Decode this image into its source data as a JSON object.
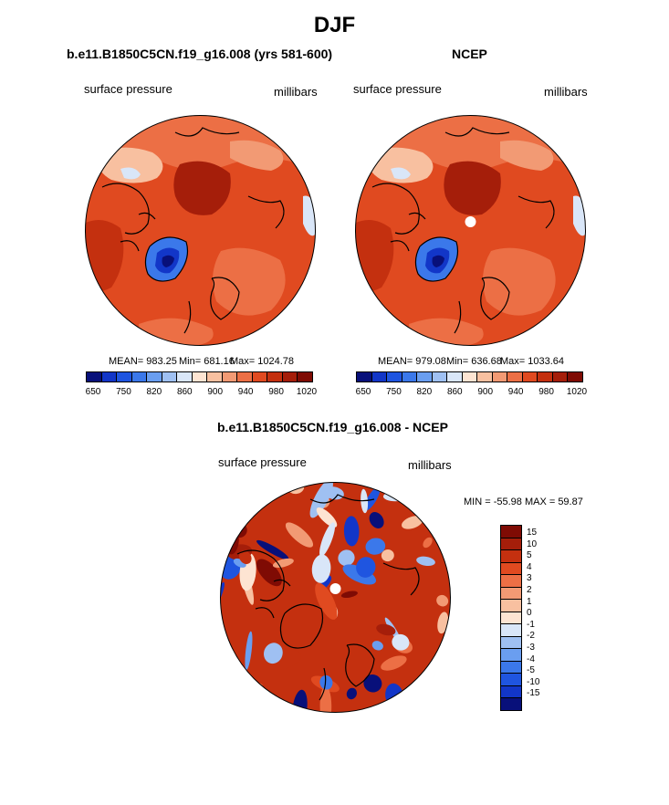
{
  "header": {
    "title": "DJF"
  },
  "panels": [
    {
      "title": "b.e11.B1850C5CN.f19_g16.008 (yrs 581-600)",
      "left_label": "surface pressure",
      "right_label": "millibars",
      "stats": {
        "mean": "MEAN= 983.25",
        "min": "Min= 681.16",
        "max": "Max= 1024.78"
      }
    },
    {
      "title": "NCEP",
      "left_label": "surface pressure",
      "right_label": "millibars",
      "stats": {
        "mean": "MEAN= 979.08",
        "min": "Min= 636.68",
        "max": "Max= 1033.64"
      }
    },
    {
      "title": "b.e11.B1850C5CN.f19_g16.008 - NCEP",
      "left_label": "surface pressure",
      "right_label": "millibars",
      "stats": {
        "minmax": "MIN = -55.98 MAX =  59.87"
      }
    }
  ],
  "colors": {
    "abs_scale": [
      "#08107a",
      "#1236c8",
      "#1f55e0",
      "#3b78ea",
      "#6a9ef0",
      "#9fc0f2",
      "#d9e6f8",
      "#fde4d2",
      "#f8c0a0",
      "#f29a74",
      "#ec6f45",
      "#e04a20",
      "#c4300f",
      "#a51e0a",
      "#7f0b04"
    ],
    "diff_scale": [
      "#08107a",
      "#1236c8",
      "#1f55e0",
      "#3b78ea",
      "#6a9ef0",
      "#9fc0f2",
      "#d9e6f8",
      "#fde4d2",
      "#f8c0a0",
      "#f29a74",
      "#ec6f45",
      "#e04a20",
      "#c4300f",
      "#a51e0a",
      "#7f0b04"
    ]
  },
  "chart_data": [
    {
      "type": "heatmap",
      "title": "b.e11.B1850C5CN.f19_g16.008 (yrs 581-600)",
      "variable": "surface pressure",
      "units": "millibars",
      "projection": "north polar stereographic",
      "mean": 983.25,
      "min": 681.16,
      "max": 1024.78,
      "colorbar_ticks": [
        "650",
        "750",
        "820",
        "860",
        "900",
        "940",
        "980",
        "1020"
      ]
    },
    {
      "type": "heatmap",
      "title": "NCEP",
      "variable": "surface pressure",
      "units": "millibars",
      "projection": "north polar stereographic",
      "mean": 979.08,
      "min": 636.68,
      "max": 1033.64,
      "colorbar_ticks": [
        "650",
        "750",
        "820",
        "860",
        "900",
        "940",
        "980",
        "1020"
      ]
    },
    {
      "type": "heatmap",
      "title": "b.e11.B1850C5CN.f19_g16.008 - NCEP",
      "variable": "surface pressure",
      "units": "millibars",
      "projection": "north polar stereographic",
      "min": -55.98,
      "max": 59.87,
      "colorbar_ticks": [
        "15",
        "10",
        "5",
        "4",
        "3",
        "2",
        "1",
        "0",
        "-1",
        "-2",
        "-3",
        "-4",
        "-5",
        "-10",
        "-15"
      ]
    }
  ]
}
